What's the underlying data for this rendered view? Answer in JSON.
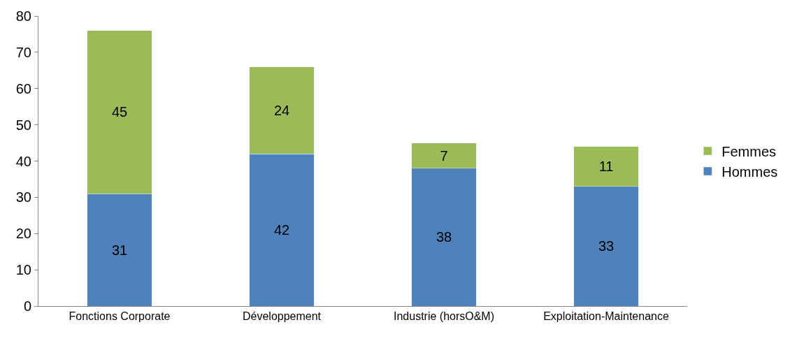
{
  "chart_data": {
    "type": "bar",
    "stacked": true,
    "categories": [
      "Fonctions Corporate",
      "Développement",
      "Industrie (horsO&M)",
      "Exploitation-Maintenance"
    ],
    "series": [
      {
        "name": "Hommes",
        "color": "#4f81bd",
        "values": [
          31,
          42,
          38,
          33
        ]
      },
      {
        "name": "Femmes",
        "color": "#9bbb59",
        "values": [
          45,
          24,
          7,
          11
        ]
      }
    ],
    "ylim": [
      0,
      80
    ],
    "yticks": [
      0,
      10,
      20,
      30,
      40,
      50,
      60,
      70,
      80
    ],
    "grid": false,
    "legend": "right",
    "data_labels": true
  }
}
